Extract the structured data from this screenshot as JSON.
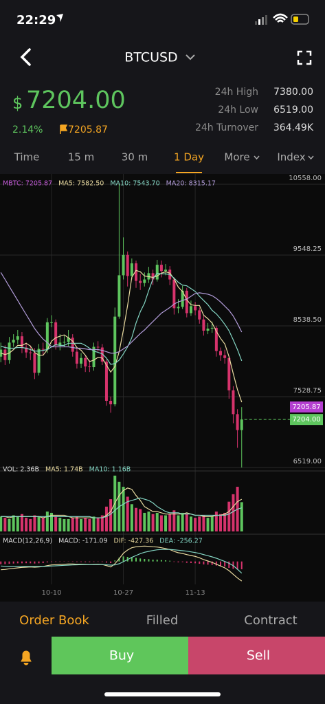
{
  "status_bar": {
    "time": "22:29"
  },
  "header": {
    "symbol": "BTCUSD"
  },
  "ticker": {
    "currency": "$",
    "price": "7204.00",
    "change": "2.14%",
    "mark_price": "7205.87",
    "stats": [
      {
        "label": "24h High",
        "value": "7380.00"
      },
      {
        "label": "24h Low",
        "value": "6519.00"
      },
      {
        "label": "24h Turnover",
        "value": "364.49K"
      }
    ]
  },
  "tabs": [
    "Time",
    "15 m",
    "30 m",
    "1 Day",
    "More",
    "Index"
  ],
  "active_tab": 3,
  "chart": {
    "type": "candlestick",
    "legend": [
      {
        "text": "MBTC: 7205.87",
        "color": "#c45ad8"
      },
      {
        "text": "MA5: 7582.50",
        "color": "#eadba0"
      },
      {
        "text": "MA10: 7543.70",
        "color": "#84d6c4"
      },
      {
        "text": "MA20: 8315.17",
        "color": "#b39ddb"
      }
    ],
    "categories": [
      null,
      null,
      null,
      null,
      null,
      null,
      null,
      null,
      null,
      null,
      null,
      null,
      "10-10",
      null,
      null,
      null,
      null,
      null,
      null,
      null,
      null,
      null,
      null,
      null,
      null,
      null,
      null,
      null,
      null,
      "10-27",
      null,
      null,
      null,
      null,
      null,
      null,
      null,
      null,
      null,
      null,
      null,
      null,
      null,
      null,
      null,
      null,
      "11-13",
      null,
      null,
      null,
      null,
      null,
      null,
      null,
      null,
      null,
      null,
      null
    ],
    "open": [
      8100,
      8200,
      8050,
      8300,
      8340,
      8390,
      8230,
      8160,
      8150,
      7870,
      8210,
      8200,
      8590,
      8590,
      8260,
      8300,
      8310,
      8370,
      8170,
      8000,
      8080,
      7960,
      7950,
      8240,
      8230,
      8030,
      7470,
      7420,
      8670,
      9260,
      9550,
      9250,
      9430,
      9180,
      9150,
      9200,
      9290,
      9200,
      9410,
      9320,
      9340,
      9200,
      8790,
      8810,
      9040,
      8720,
      8820,
      8760,
      8630,
      8470,
      8500,
      8510,
      8180,
      8120,
      8080,
      7620,
      7280,
      7053
    ],
    "high": [
      8300,
      8260,
      8380,
      8420,
      8480,
      8450,
      8300,
      8260,
      8220,
      8280,
      8300,
      8650,
      8690,
      8630,
      8420,
      8400,
      8480,
      8420,
      8220,
      8150,
      8120,
      8050,
      8300,
      8320,
      8280,
      8060,
      7530,
      8800,
      10558,
      9800,
      9600,
      9500,
      9470,
      9280,
      9300,
      9380,
      9340,
      9480,
      9470,
      9420,
      9390,
      9230,
      8920,
      9110,
      9080,
      8900,
      8880,
      8800,
      8680,
      8580,
      8600,
      8540,
      8230,
      8200,
      8100,
      7680,
      7350,
      7380
    ],
    "low": [
      8020,
      7980,
      8000,
      8240,
      8280,
      8150,
      8080,
      8050,
      7780,
      7830,
      8120,
      8150,
      8520,
      8200,
      8190,
      8240,
      8250,
      8100,
      7930,
      7940,
      7880,
      7880,
      7900,
      8170,
      7980,
      7400,
      7300,
      7390,
      8640,
      9200,
      9100,
      9200,
      9080,
      9050,
      9100,
      9150,
      9120,
      9170,
      9230,
      9260,
      9120,
      8700,
      8720,
      8780,
      8660,
      8680,
      8690,
      8570,
      8400,
      8420,
      8440,
      8100,
      8040,
      8000,
      7500,
      7150,
      6800,
      6519
    ],
    "close": [
      8200,
      8050,
      8300,
      8340,
      8390,
      8230,
      8160,
      8150,
      7870,
      8210,
      8200,
      8590,
      8590,
      8260,
      8300,
      8310,
      8370,
      8170,
      8000,
      8080,
      7960,
      7950,
      8240,
      8230,
      8030,
      7470,
      7420,
      8670,
      9260,
      9550,
      9250,
      9430,
      9180,
      9150,
      9200,
      9290,
      9200,
      9410,
      9320,
      9340,
      9200,
      8790,
      8810,
      9040,
      8720,
      8820,
      8760,
      8630,
      8470,
      8500,
      8510,
      8180,
      8120,
      8080,
      7620,
      7280,
      7053,
      7204
    ],
    "ma": [
      {
        "color": "#eadba0",
        "values": [
          8150,
          8130,
          8150,
          8200,
          8260,
          8260,
          8290,
          8250,
          8160,
          8120,
          8120,
          8200,
          8320,
          8370,
          8390,
          8410,
          8370,
          8320,
          8230,
          8190,
          8120,
          8030,
          8050,
          8090,
          8080,
          7980,
          7880,
          7960,
          8170,
          8480,
          8830,
          9230,
          9330,
          9310,
          9250,
          9240,
          9230,
          9250,
          9290,
          9310,
          9290,
          9210,
          9090,
          9030,
          8910,
          8840,
          8830,
          8830,
          8690,
          8640,
          8580,
          8460,
          8360,
          8280,
          8100,
          7860,
          7630,
          7450
        ]
      },
      {
        "color": "#84d6c4",
        "values": [
          8250,
          8230,
          8220,
          8220,
          8230,
          8230,
          8220,
          8200,
          8180,
          8180,
          8190,
          8200,
          8240,
          8270,
          8260,
          8260,
          8290,
          8290,
          8290,
          8290,
          8260,
          8220,
          8180,
          8160,
          8140,
          8080,
          7990,
          8000,
          8050,
          8140,
          8240,
          8370,
          8580,
          8740,
          8860,
          9040,
          9210,
          9290,
          9280,
          9280,
          9270,
          9220,
          9160,
          9120,
          9110,
          9070,
          9030,
          8960,
          8900,
          8840,
          8760,
          8710,
          8640,
          8560,
          8470,
          8340,
          8200,
          8040
        ]
      },
      {
        "color": "#b39ddb",
        "values": [
          9300,
          9200,
          9100,
          9000,
          8900,
          8800,
          8700,
          8600,
          8500,
          8420,
          8350,
          8300,
          8240,
          8240,
          8240,
          8240,
          8240,
          8230,
          8220,
          8220,
          8210,
          8200,
          8200,
          8200,
          8190,
          8170,
          8150,
          8150,
          8170,
          8210,
          8250,
          8310,
          8370,
          8430,
          8480,
          8540,
          8600,
          8660,
          8720,
          8760,
          8800,
          8850,
          8880,
          8900,
          8920,
          8960,
          9000,
          9010,
          9000,
          8990,
          8970,
          8930,
          8880,
          8820,
          8760,
          8680,
          8570,
          8450
        ]
      }
    ],
    "ylim": [
      6323,
      10705
    ],
    "yticks": [
      {
        "value": 10558,
        "label": "10558.00"
      },
      {
        "value": 9548.25,
        "label": "9548.25"
      },
      {
        "value": 8538.5,
        "label": "8538.50"
      },
      {
        "value": 7528.75,
        "label": "7528.75"
      },
      {
        "value": 6519,
        "label": "6519.00"
      }
    ],
    "grid": true,
    "colors": {
      "up": "#5ec55e",
      "down": "#d6336c"
    },
    "mark_price": {
      "value": 7205.87,
      "label": "7205.87",
      "color": "#b43fd0"
    },
    "last_price": {
      "value": 7204,
      "label": "7204.00",
      "color": "#5ec55e"
    }
  },
  "volume": {
    "legend": [
      {
        "text": "VOL: 2.36B",
        "color": "#dddddd"
      },
      {
        "text": "MA5: 1.74B",
        "color": "#eadba0"
      },
      {
        "text": "MA10: 1.16B",
        "color": "#84d6c4"
      }
    ],
    "values": [
      1.2,
      1.1,
      1.0,
      1.3,
      1.2,
      1.4,
      1.1,
      1.0,
      1.3,
      1.2,
      1.1,
      1.6,
      1.5,
      1.2,
      1.1,
      1.0,
      1.0,
      1.1,
      1.2,
      1.0,
      1.1,
      1.0,
      1.2,
      1.1,
      1.3,
      2.0,
      2.6,
      4.5,
      4.0,
      3.6,
      2.8,
      2.2,
      1.9,
      1.8,
      1.5,
      1.6,
      1.4,
      1.5,
      1.3,
      1.3,
      1.4,
      1.7,
      1.3,
      1.5,
      1.4,
      1.2,
      1.1,
      1.2,
      1.3,
      1.1,
      1.2,
      1.6,
      1.4,
      1.5,
      2.4,
      3.0,
      3.6,
      2.36
    ],
    "ma": [
      {
        "color": "#eadba0",
        "values": [
          1.2,
          1.2,
          1.1,
          1.2,
          1.2,
          1.2,
          1.2,
          1.2,
          1.2,
          1.2,
          1.1,
          1.2,
          1.3,
          1.3,
          1.3,
          1.3,
          1.2,
          1.1,
          1.1,
          1.1,
          1.1,
          1.1,
          1.1,
          1.1,
          1.1,
          1.3,
          1.6,
          2.3,
          2.9,
          3.3,
          3.5,
          3.4,
          2.9,
          2.5,
          2.0,
          1.8,
          1.6,
          1.6,
          1.5,
          1.4,
          1.4,
          1.4,
          1.4,
          1.4,
          1.5,
          1.4,
          1.3,
          1.3,
          1.2,
          1.2,
          1.2,
          1.3,
          1.3,
          1.4,
          1.6,
          2.0,
          2.4,
          2.6
        ]
      },
      {
        "color": "#84d6c4",
        "values": [
          1.2,
          1.2,
          1.2,
          1.2,
          1.2,
          1.2,
          1.2,
          1.2,
          1.2,
          1.2,
          1.2,
          1.2,
          1.2,
          1.2,
          1.2,
          1.2,
          1.2,
          1.2,
          1.2,
          1.2,
          1.2,
          1.2,
          1.1,
          1.1,
          1.1,
          1.2,
          1.4,
          1.7,
          2.0,
          2.2,
          2.4,
          2.5,
          2.6,
          2.7,
          2.6,
          2.5,
          2.3,
          2.0,
          1.8,
          1.6,
          1.5,
          1.5,
          1.5,
          1.4,
          1.4,
          1.4,
          1.3,
          1.3,
          1.3,
          1.3,
          1.3,
          1.3,
          1.3,
          1.3,
          1.4,
          1.6,
          1.8,
          1.9
        ]
      }
    ],
    "ylim": [
      0,
      4.6
    ]
  },
  "macd": {
    "legend": [
      {
        "text": "MACD(12,26,9)",
        "color": "#dddddd"
      },
      {
        "text": "MACD: -171.09",
        "color": "#dddddd"
      },
      {
        "text": "DIF: -427.36",
        "color": "#eadba0"
      },
      {
        "text": "DEA: -256.27",
        "color": "#84d6c4"
      }
    ],
    "hist": [
      -60,
      -58,
      -50,
      -45,
      -40,
      -40,
      -38,
      -40,
      -45,
      -40,
      -35,
      -20,
      -10,
      -10,
      -8,
      -5,
      -5,
      -8,
      -12,
      -12,
      -15,
      -15,
      -10,
      -8,
      -10,
      -25,
      -35,
      20,
      80,
      110,
      100,
      95,
      80,
      65,
      55,
      50,
      40,
      40,
      30,
      25,
      15,
      -10,
      -20,
      -15,
      -30,
      -35,
      -40,
      -50,
      -65,
      -70,
      -75,
      -90,
      -100,
      -110,
      -140,
      -160,
      -175,
      -171
    ],
    "dif": [
      -180,
      -175,
      -160,
      -150,
      -140,
      -130,
      -125,
      -120,
      -125,
      -120,
      -110,
      -90,
      -75,
      -70,
      -65,
      -60,
      -55,
      -55,
      -60,
      -60,
      -65,
      -70,
      -65,
      -60,
      -65,
      -90,
      -120,
      -50,
      60,
      180,
      250,
      300,
      320,
      330,
      335,
      330,
      320,
      315,
      300,
      280,
      260,
      220,
      190,
      175,
      150,
      130,
      110,
      80,
      40,
      10,
      -20,
      -60,
      -100,
      -140,
      -200,
      -280,
      -360,
      -427
    ],
    "dea": [
      -100,
      -105,
      -110,
      -110,
      -110,
      -110,
      -110,
      -110,
      -110,
      -110,
      -110,
      -105,
      -100,
      -95,
      -90,
      -85,
      -80,
      -75,
      -72,
      -70,
      -70,
      -70,
      -70,
      -68,
      -68,
      -72,
      -80,
      -75,
      -50,
      -5,
      40,
      90,
      130,
      170,
      200,
      220,
      240,
      255,
      260,
      262,
      262,
      255,
      245,
      235,
      225,
      210,
      195,
      175,
      150,
      125,
      100,
      70,
      35,
      0,
      -40,
      -90,
      -170,
      -256
    ],
    "ylim": [
      -500,
      400
    ]
  },
  "bottom_tabs": [
    "Order Book",
    "Filled",
    "Contract"
  ],
  "active_bottom_tab": 0,
  "buttons": {
    "buy": "Buy",
    "sell": "Sell"
  }
}
